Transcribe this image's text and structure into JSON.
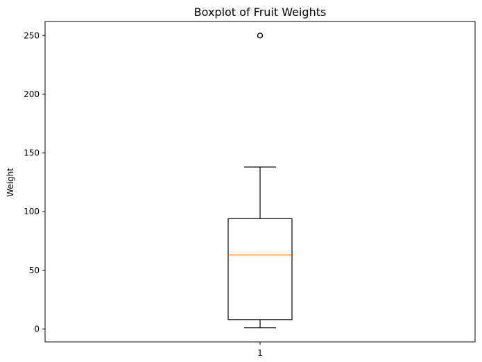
{
  "chart_data": {
    "type": "boxplot",
    "title": "Boxplot of Fruit Weights",
    "xlabel": "",
    "ylabel": "Weight",
    "categories": [
      "1"
    ],
    "boxes": [
      {
        "category": "1",
        "whisker_low": 1,
        "q1": 8,
        "median": 63,
        "q3": 94,
        "whisker_high": 138,
        "outliers": [
          250
        ]
      }
    ],
    "ylim": [
      -11,
      262
    ],
    "xlim": [
      0.5,
      1.5
    ],
    "yticks": [
      0,
      50,
      100,
      150,
      200,
      250
    ],
    "grid": false,
    "colors": {
      "box": "#000000",
      "median": "#ff7f0e",
      "whisker": "#000000",
      "outlier": "#000000"
    }
  }
}
